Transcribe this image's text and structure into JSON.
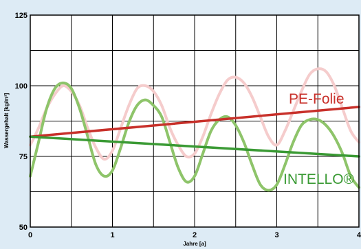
{
  "chart_data": {
    "type": "line",
    "xlabel": "Jahre [a]",
    "ylabel": "Wassergehalt [kg/m³]",
    "xlim": [
      0,
      4
    ],
    "ylim": [
      50,
      125
    ],
    "x_ticks": [
      "0",
      "1",
      "2",
      "3",
      "4"
    ],
    "y_ticks": [
      "50",
      "75",
      "100",
      "125"
    ],
    "grid": true,
    "series": [
      {
        "name": "PE-Folie",
        "role": "trend",
        "color": "#c8302a",
        "x": [
          0,
          4
        ],
        "y": [
          82,
          92.5
        ]
      },
      {
        "name": "INTELLO®",
        "role": "trend",
        "color": "#3a9a34",
        "x": [
          0,
          4
        ],
        "y": [
          82,
          75
        ]
      },
      {
        "name": "",
        "role": "oscillation",
        "color": "#f5cccc",
        "x": [
          0,
          0.1,
          0.2,
          0.3,
          0.4,
          0.5,
          0.6,
          0.7,
          0.8,
          0.9,
          1.0,
          1.1,
          1.2,
          1.3,
          1.4,
          1.5,
          1.6,
          1.7,
          1.8,
          1.9,
          2.0,
          2.1,
          2.2,
          2.3,
          2.4,
          2.5,
          2.6,
          2.7,
          2.8,
          2.9,
          3.0,
          3.1,
          3.2,
          3.3,
          3.4,
          3.5,
          3.6,
          3.7,
          3.8,
          3.9,
          4.0
        ],
        "y": [
          79,
          85,
          92,
          97,
          100,
          98,
          93,
          85,
          78,
          74,
          77,
          85,
          93,
          99,
          100,
          98,
          93,
          85,
          79,
          75,
          76,
          82,
          90,
          97,
          102,
          103,
          101,
          96,
          89,
          82,
          79,
          84,
          91,
          98,
          104,
          106,
          105,
          100,
          92,
          84,
          80
        ]
      },
      {
        "name": "",
        "role": "oscillation",
        "color": "#8ec46a",
        "x": [
          0,
          0.1,
          0.2,
          0.3,
          0.4,
          0.5,
          0.6,
          0.7,
          0.8,
          0.9,
          1.0,
          1.1,
          1.2,
          1.3,
          1.4,
          1.5,
          1.6,
          1.7,
          1.8,
          1.9,
          2.0,
          2.1,
          2.2,
          2.3,
          2.4,
          2.5,
          2.6,
          2.7,
          2.8,
          2.9,
          3.0,
          3.1,
          3.2,
          3.3,
          3.4,
          3.5,
          3.6,
          3.7,
          3.8,
          3.9,
          4.0
        ],
        "y": [
          68,
          80,
          92,
          99,
          101,
          99,
          92,
          82,
          72,
          68,
          70,
          78,
          87,
          93,
          95,
          93,
          89,
          80,
          71,
          66,
          68,
          76,
          84,
          88,
          89,
          86,
          80,
          72,
          65,
          63,
          65,
          72,
          80,
          86,
          88,
          88,
          86,
          82,
          76,
          68,
          64
        ]
      }
    ]
  }
}
